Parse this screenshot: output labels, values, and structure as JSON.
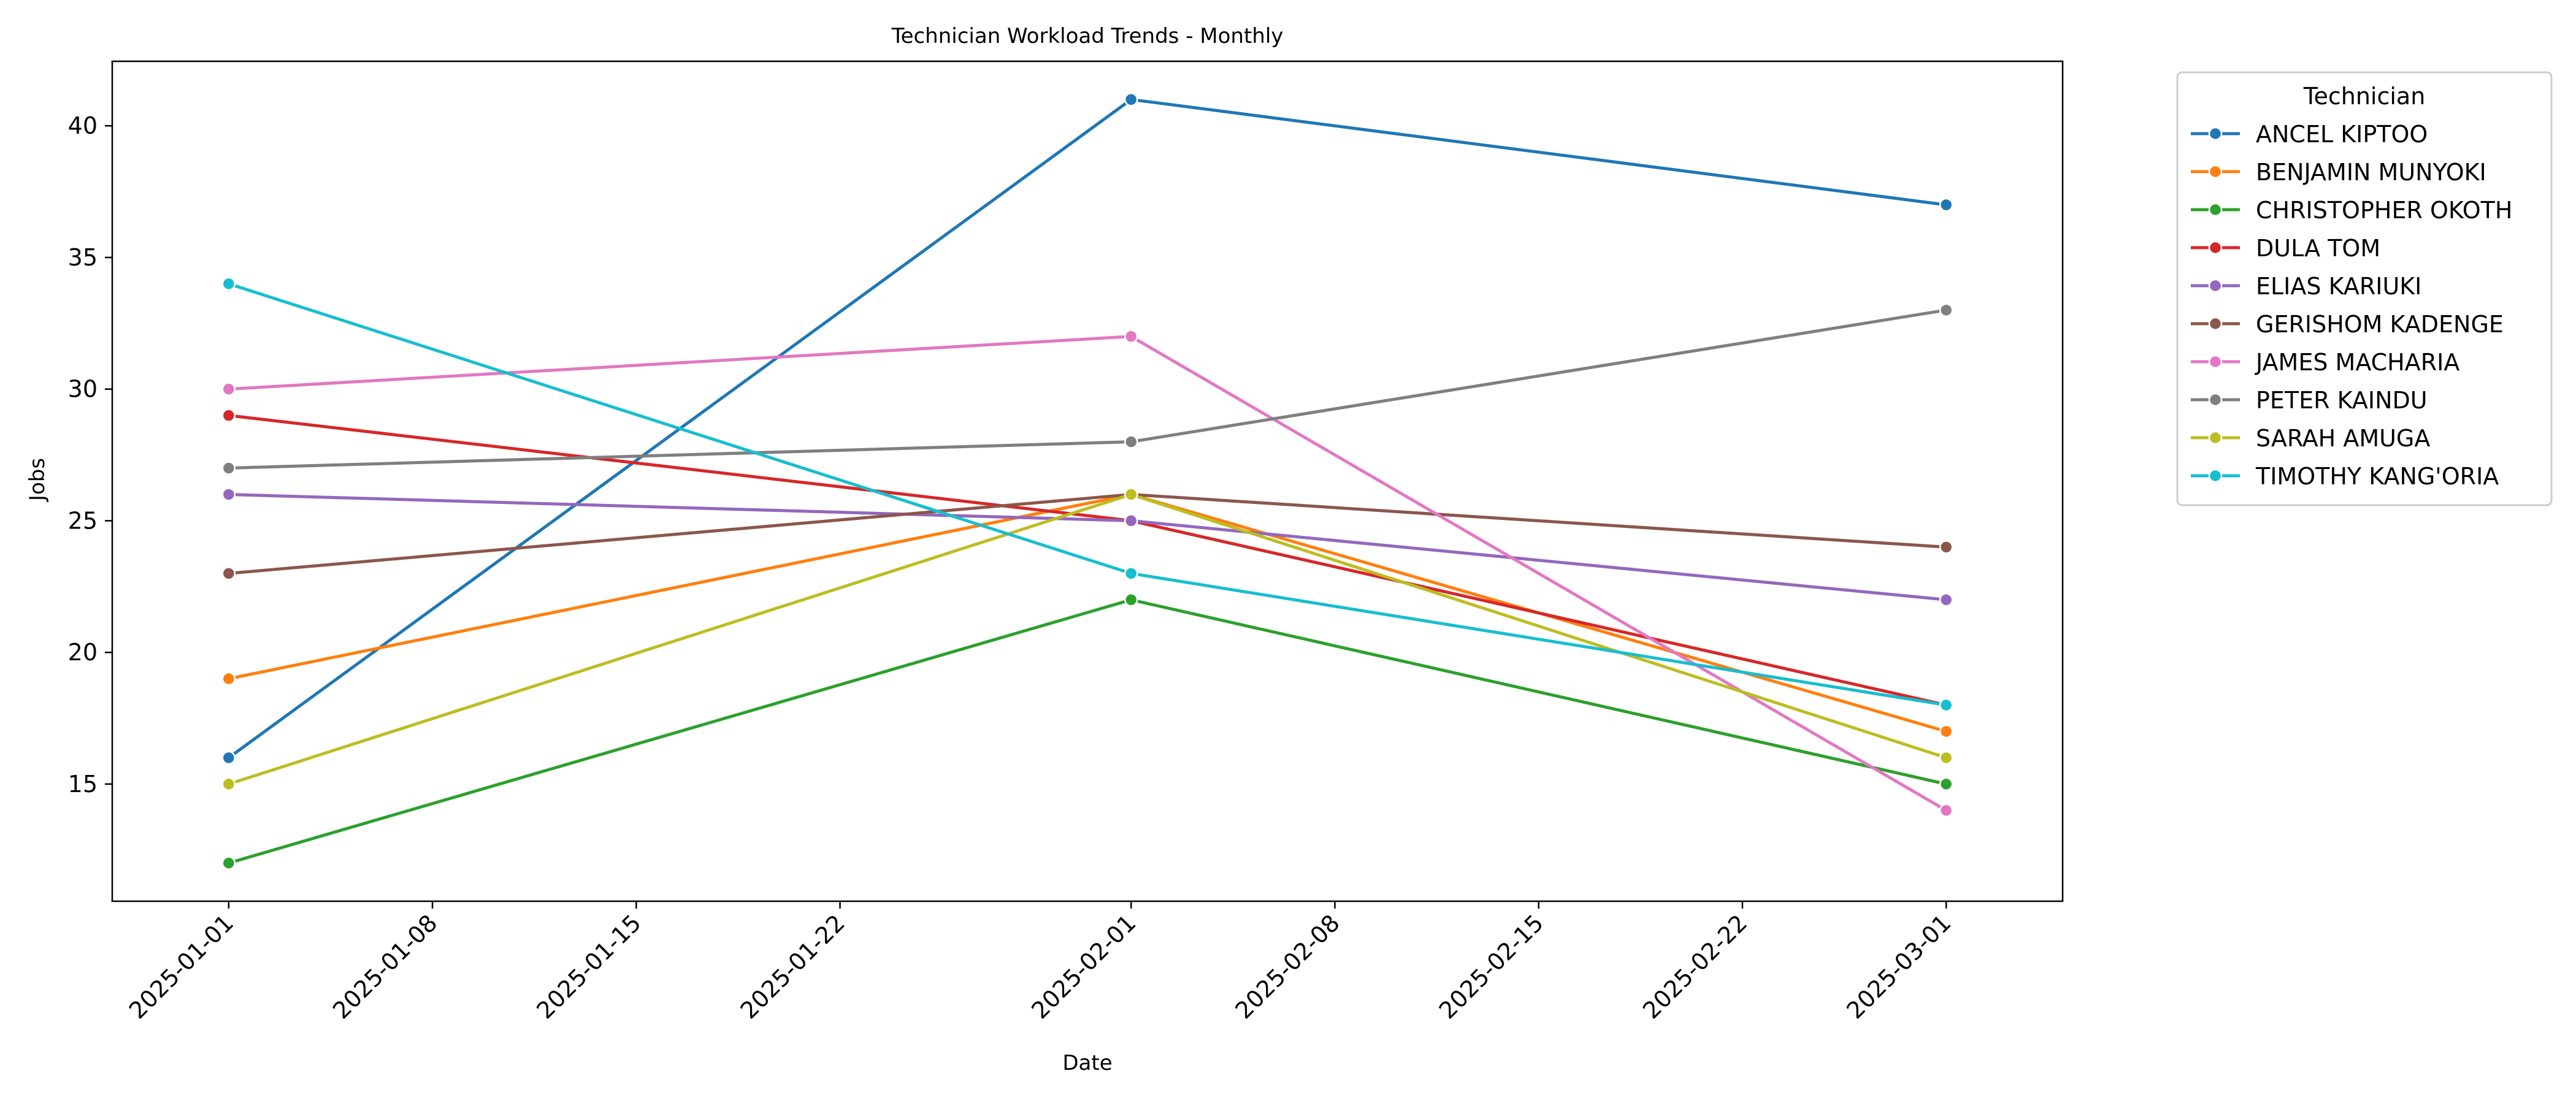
{
  "chart_data": {
    "type": "line",
    "title": "Technician Workload Trends - Monthly",
    "xlabel": "Date",
    "ylabel": "Jobs",
    "x": [
      "2025-01-01",
      "2025-02-01",
      "2025-03-01"
    ],
    "xlim": [
      "2024-12-28",
      "2025-03-05"
    ],
    "x_ticks": [
      "2025-01-01",
      "2025-01-08",
      "2025-01-15",
      "2025-01-22",
      "2025-02-01",
      "2025-02-08",
      "2025-02-15",
      "2025-02-22",
      "2025-03-01"
    ],
    "ylim": [
      10.55,
      42.45
    ],
    "y_ticks": [
      15,
      20,
      25,
      30,
      35,
      40
    ],
    "grid": false,
    "legend": {
      "title": "Technician",
      "placement": "outside-right-top"
    },
    "series": [
      {
        "name": "ANCEL KIPTOO",
        "color": "#1f77b4",
        "values": [
          16,
          41,
          37
        ]
      },
      {
        "name": "BENJAMIN MUNYOKI",
        "color": "#ff7f0e",
        "values": [
          19,
          26,
          17
        ]
      },
      {
        "name": "CHRISTOPHER OKOTH",
        "color": "#2ca02c",
        "values": [
          12,
          22,
          15
        ]
      },
      {
        "name": "DULA TOM",
        "color": "#d62728",
        "values": [
          29,
          25,
          18
        ]
      },
      {
        "name": "ELIAS KARIUKI",
        "color": "#9467bd",
        "values": [
          26,
          25,
          22
        ]
      },
      {
        "name": "GERISHOM KADENGE",
        "color": "#8c564b",
        "values": [
          23,
          26,
          24
        ]
      },
      {
        "name": "JAMES MACHARIA",
        "color": "#e377c2",
        "values": [
          30,
          32,
          14
        ]
      },
      {
        "name": "PETER KAINDU",
        "color": "#7f7f7f",
        "values": [
          27,
          28,
          33
        ]
      },
      {
        "name": "SARAH AMUGA",
        "color": "#bcbd22",
        "values": [
          15,
          26,
          16
        ]
      },
      {
        "name": "TIMOTHY KANG'ORIA",
        "color": "#17becf",
        "values": [
          34,
          23,
          18
        ]
      }
    ]
  }
}
